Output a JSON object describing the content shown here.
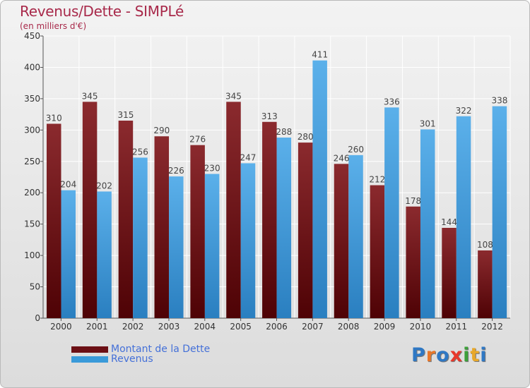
{
  "header": {
    "title": "Revenus/Dette - SIMPLé",
    "subtitle": "(en milliers d'€)"
  },
  "chart_data": {
    "type": "bar",
    "categories": [
      "2000",
      "2001",
      "2002",
      "2003",
      "2004",
      "2005",
      "2006",
      "2007",
      "2008",
      "2009",
      "2010",
      "2011",
      "2012"
    ],
    "series": [
      {
        "name": "Montant de la Dette",
        "color": "#7a1418",
        "values": [
          310,
          345,
          315,
          290,
          276,
          345,
          313,
          280,
          246,
          212,
          178,
          144,
          108
        ]
      },
      {
        "name": "Revenus",
        "color": "#3a9ad9",
        "values": [
          204,
          202,
          256,
          226,
          230,
          247,
          288,
          411,
          260,
          336,
          301,
          322,
          338
        ]
      }
    ],
    "ylim": [
      0,
      450
    ],
    "yticks": [
      0,
      50,
      100,
      150,
      200,
      250,
      300,
      350,
      400,
      450
    ],
    "grid": true,
    "legend_position": "bottom-left"
  },
  "legend": {
    "items": [
      {
        "label": "Montant de la Dette",
        "color": "#6b0f14"
      },
      {
        "label": "Revenus",
        "color": "#3a9ad9"
      }
    ]
  },
  "logo": {
    "letters": [
      {
        "char": "P",
        "color": "#2f78c4"
      },
      {
        "char": "r",
        "color": "#e8772a"
      },
      {
        "char": "o",
        "color": "#2f78c4"
      },
      {
        "char": "x",
        "color": "#e8372a"
      },
      {
        "char": "i",
        "color": "#3da03a"
      },
      {
        "char": "t",
        "color": "#e8a82a"
      },
      {
        "char": "i",
        "color": "#2f78c4"
      }
    ]
  }
}
